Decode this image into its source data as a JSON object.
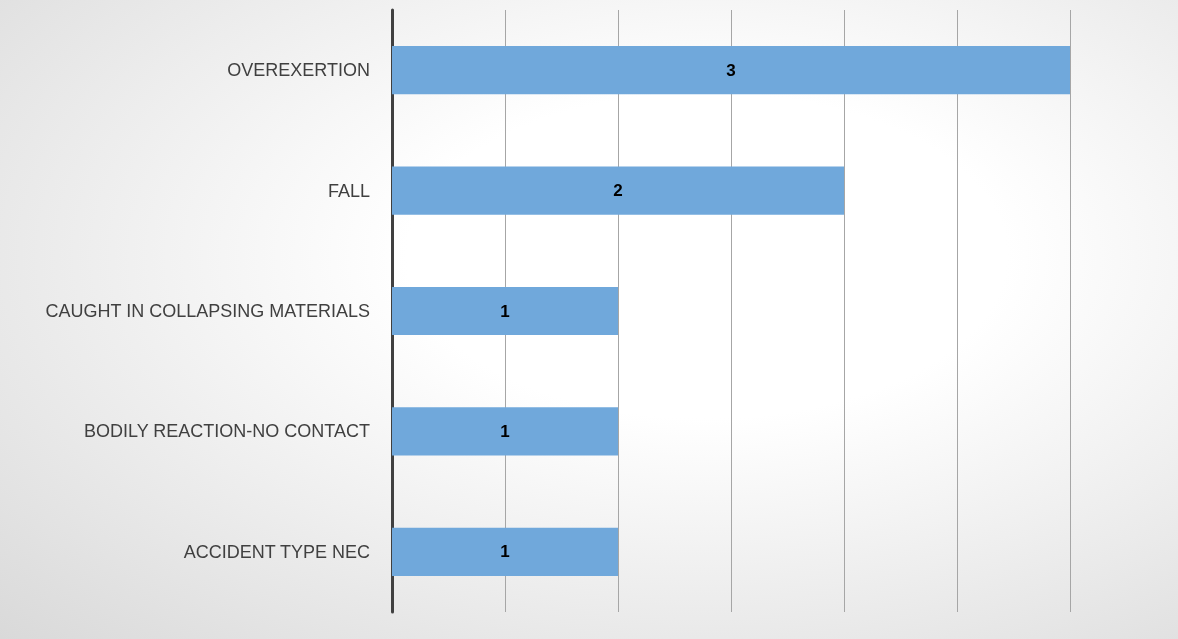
{
  "chart_data": {
    "type": "bar",
    "orientation": "horizontal",
    "categories": [
      "OVEREXERTION",
      "FALL",
      "CAUGHT IN COLLAPSING MATERIALS",
      "BODILY REACTION-NO CONTACT",
      "ACCIDENT TYPE NEC"
    ],
    "values": [
      3,
      2,
      1,
      1,
      1
    ],
    "color": "#70a8db",
    "xlim": [
      0,
      3
    ],
    "xticks": [
      {
        "value": 0,
        "label": null
      },
      {
        "value": 0.5,
        "label": null
      },
      {
        "value": 1,
        "label": null
      },
      {
        "value": 1.5,
        "label": null
      },
      {
        "value": 2,
        "label": null
      },
      {
        "value": 2.5,
        "label": null
      },
      {
        "value": 3,
        "label": null
      }
    ],
    "tick_labels": "y",
    "grid": "x",
    "data_labels": true
  }
}
